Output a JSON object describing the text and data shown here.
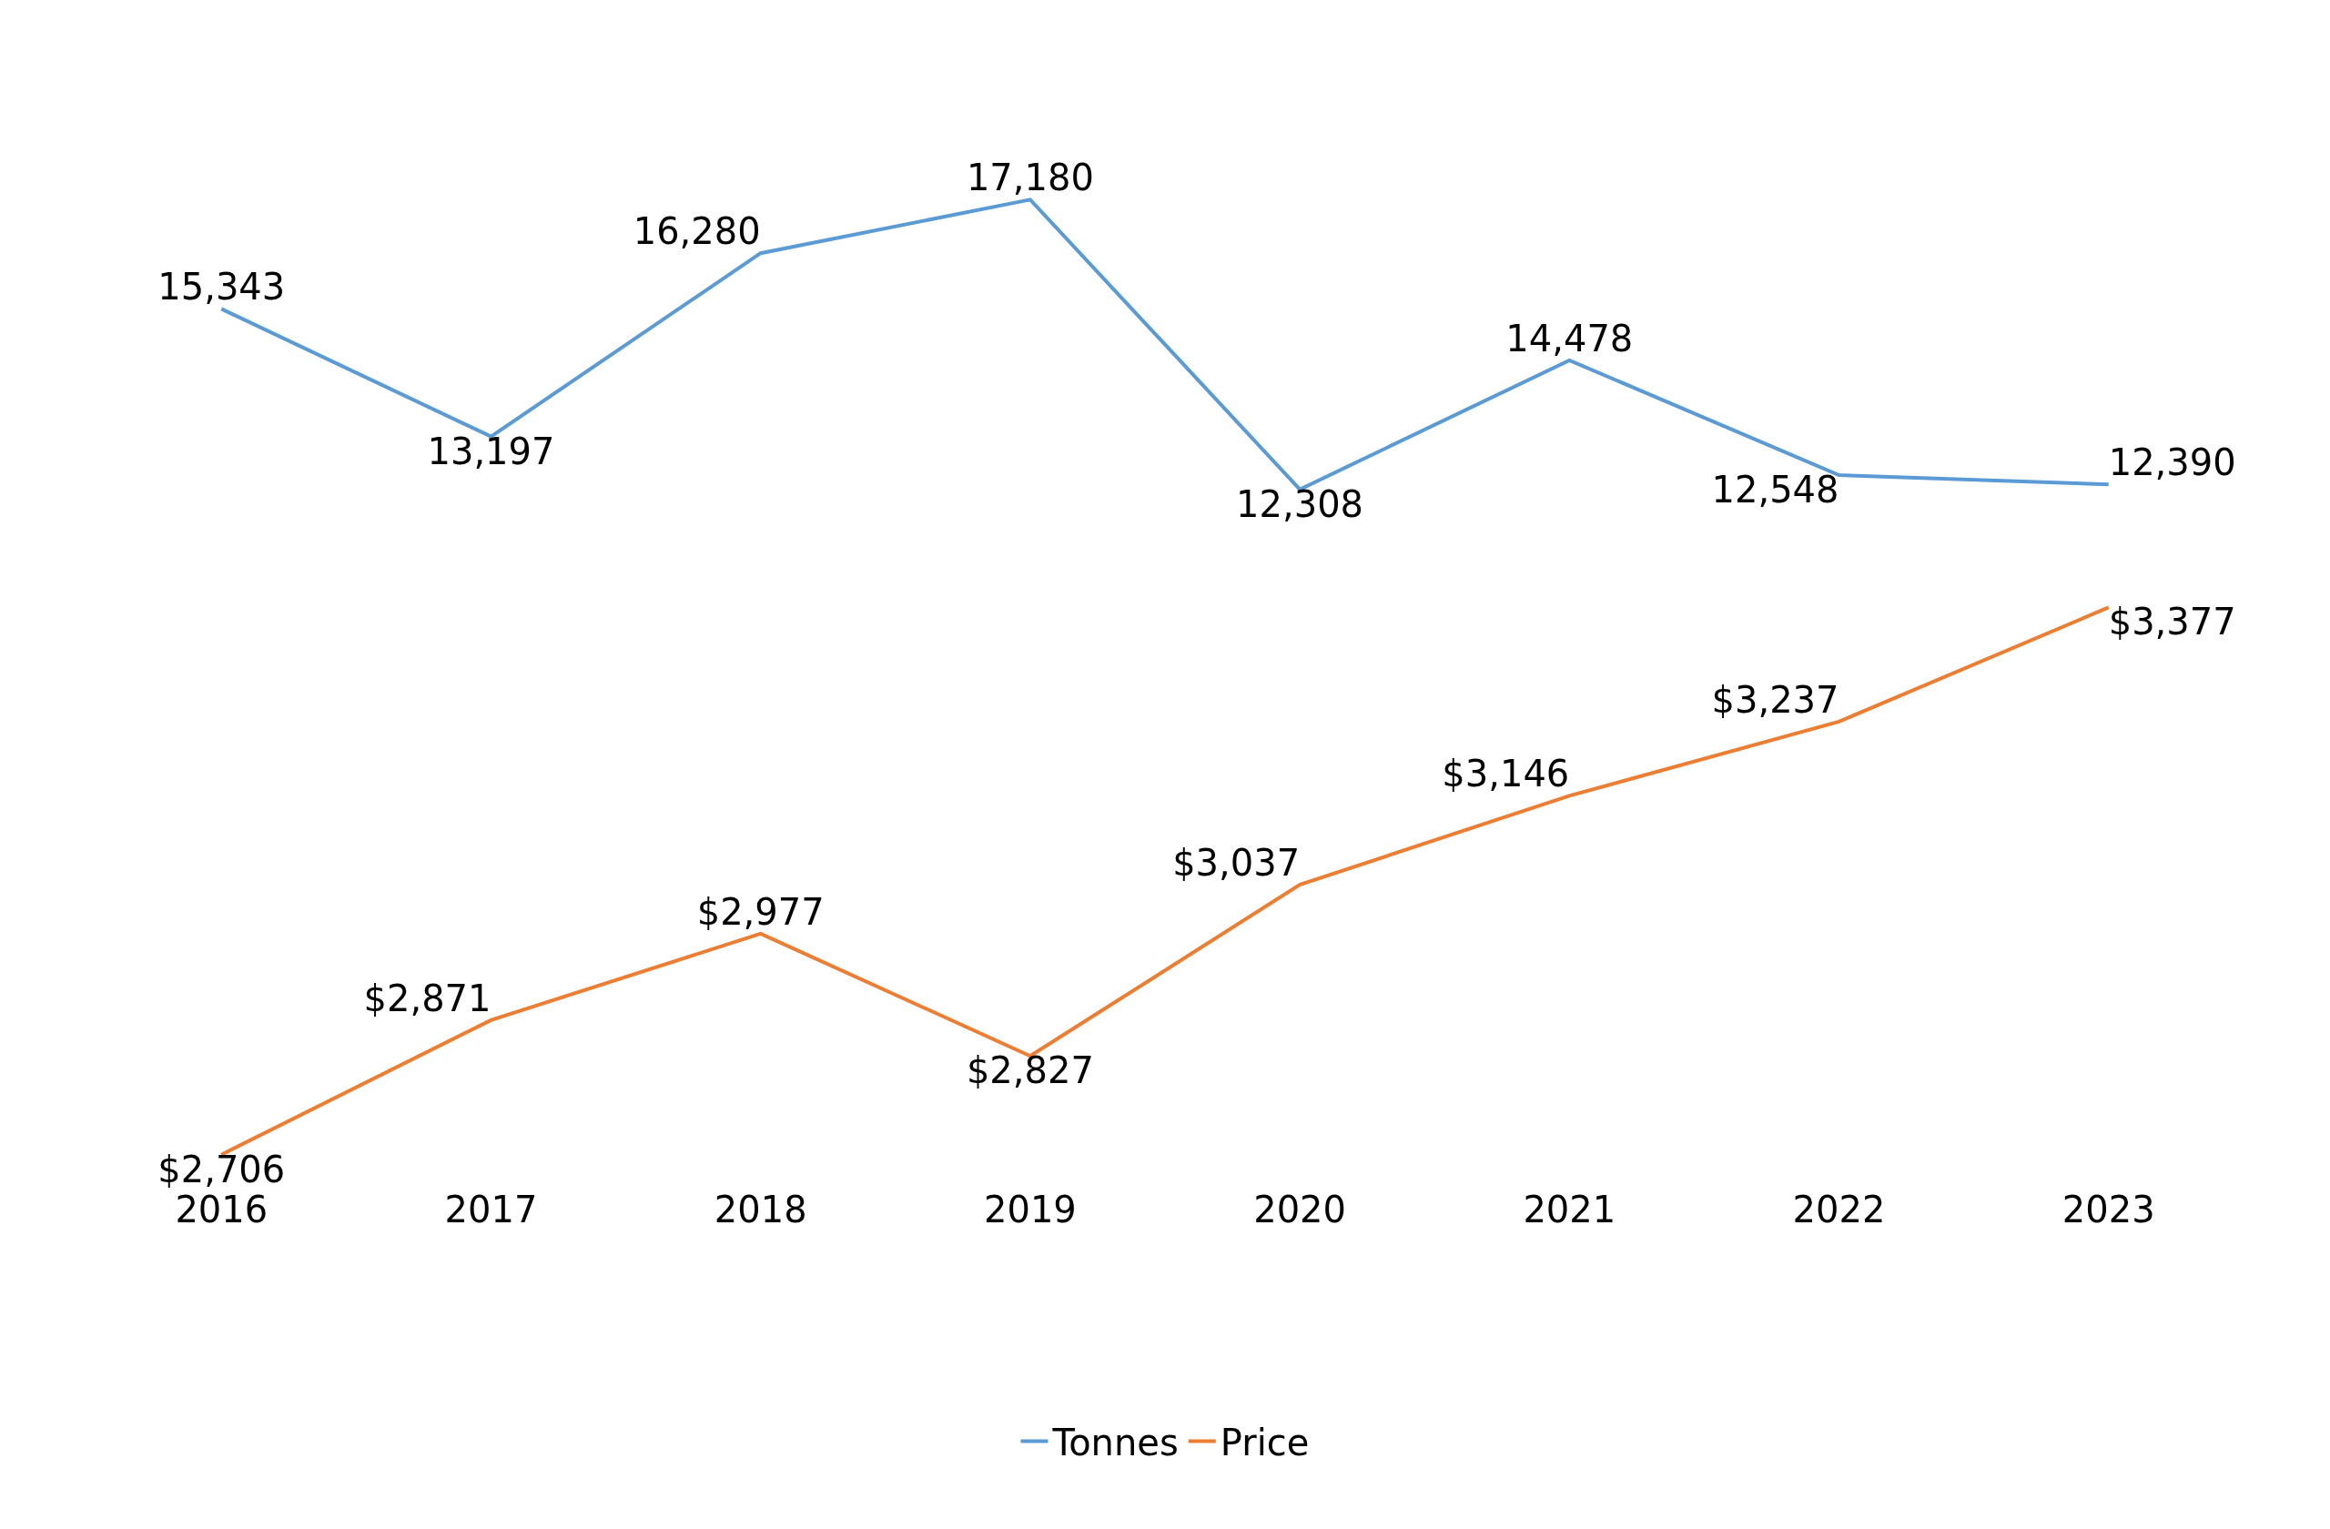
{
  "chart_data": [
    {
      "type": "line",
      "categories": [
        "2016",
        "2017",
        "2018",
        "2019",
        "2020",
        "2021",
        "2022",
        "2023"
      ],
      "tick_labels": false,
      "marker": "none",
      "line_style": "solid",
      "series": [
        {
          "name": "Tonnes",
          "color": "#5b9bd5",
          "values": [
            15343,
            13197,
            16280,
            17180,
            12308,
            14478,
            12548,
            12390
          ],
          "value_labels": [
            "15,343",
            "13,197",
            "16,280",
            "17,180",
            "12,308",
            "14,478",
            "12,548",
            "12,390"
          ]
        }
      ]
    },
    {
      "type": "line",
      "categories": [
        "2016",
        "2017",
        "2018",
        "2019",
        "2020",
        "2021",
        "2022",
        "2023"
      ],
      "legend": "bottom",
      "marker": "none",
      "line_style": "solid",
      "series": [
        {
          "name": "Price",
          "color": "#ed7d31",
          "values": [
            2706,
            2871,
            2977,
            2827,
            3037,
            3146,
            3237,
            3377
          ],
          "value_labels": [
            "$2,706",
            "$2,871",
            "$2,977",
            "$2,827",
            "$3,037",
            "$3,146",
            "$3,237",
            "$3,377"
          ]
        }
      ]
    }
  ]
}
